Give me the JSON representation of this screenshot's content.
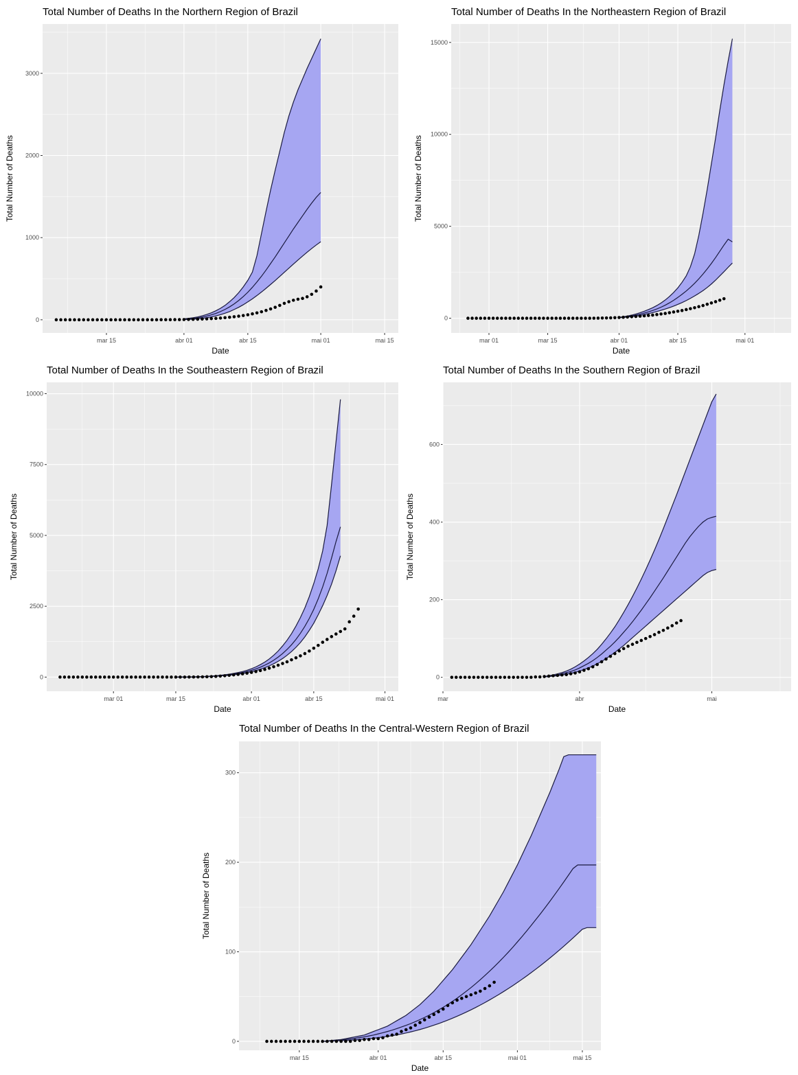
{
  "colors": {
    "panel": "#ebebeb",
    "grid": "#ffffff",
    "band": "#a6a6f2",
    "line": "#1a1a40",
    "point": "#000000"
  },
  "chart_data": [
    {
      "id": "north",
      "type": "line",
      "title": "Total Number of Deaths In the Northern Region of Brazil",
      "xlabel": "Date",
      "ylabel": "Total Number of Deaths",
      "x_unit": "date",
      "xlim": [
        "2020-03-01",
        "2020-05-18"
      ],
      "ylim": [
        -160,
        3600
      ],
      "y_ticks": [
        0,
        1000,
        2000,
        3000
      ],
      "x_ticks": [
        {
          "date": "2020-03-15",
          "label": "mar 15"
        },
        {
          "date": "2020-04-01",
          "label": "abr 01"
        },
        {
          "date": "2020-04-15",
          "label": "abr 15"
        },
        {
          "date": "2020-05-01",
          "label": "mai 01"
        },
        {
          "date": "2020-05-15",
          "label": "mai 15"
        }
      ],
      "band": {
        "name": "prediction interval",
        "start": "2020-04-01",
        "upper": [
          12,
          18,
          25,
          35,
          48,
          65,
          85,
          110,
          140,
          175,
          220,
          270,
          330,
          400,
          480,
          580,
          780,
          1050,
          1320,
          1580,
          1820,
          2050,
          2280,
          2480,
          2650,
          2800,
          2930,
          3060,
          3180,
          3300,
          3420
        ],
        "lower": [
          3,
          5,
          8,
          12,
          18,
          25,
          35,
          47,
          62,
          80,
          100,
          125,
          152,
          183,
          218,
          255,
          295,
          338,
          383,
          430,
          478,
          528,
          578,
          628,
          678,
          727,
          775,
          822,
          867,
          910,
          950
        ]
      },
      "median": [
        8,
        12,
        17,
        24,
        33,
        45,
        60,
        78,
        100,
        126,
        157,
        193,
        235,
        282,
        335,
        395,
        460,
        530,
        605,
        685,
        765,
        850,
        935,
        1020,
        1105,
        1185,
        1265,
        1345,
        1420,
        1490,
        1550
      ],
      "points": {
        "start": "2020-03-04",
        "values": [
          0,
          0,
          0,
          0,
          0,
          0,
          0,
          0,
          0,
          0,
          0,
          0,
          0,
          0,
          0,
          0,
          0,
          0,
          0,
          0,
          0,
          0,
          0,
          1,
          1,
          1,
          2,
          2,
          3,
          4,
          5,
          7,
          9,
          11,
          14,
          17,
          21,
          26,
          31,
          37,
          44,
          52,
          61,
          72,
          84,
          98,
          114,
          132,
          152,
          175,
          200,
          220,
          238,
          250,
          260,
          280,
          310,
          350,
          400
        ]
      }
    },
    {
      "id": "northeast",
      "type": "line",
      "title": "Total Number of Deaths In the Northeastern Region of Brazil",
      "xlabel": "Date",
      "ylabel": "Total Number of Deaths",
      "x_unit": "date",
      "xlim": [
        "2020-02-21",
        "2020-05-12"
      ],
      "ylim": [
        -800,
        16000
      ],
      "y_ticks": [
        0,
        5000,
        10000,
        15000
      ],
      "x_ticks": [
        {
          "date": "2020-03-01",
          "label": "mar 01"
        },
        {
          "date": "2020-03-15",
          "label": "mar 15"
        },
        {
          "date": "2020-04-01",
          "label": "abr 01"
        },
        {
          "date": "2020-04-15",
          "label": "abr 15"
        },
        {
          "date": "2020-05-01",
          "label": "mai 01"
        }
      ],
      "band": {
        "name": "prediction interval",
        "start": "2020-04-01",
        "upper": [
          50,
          80,
          120,
          170,
          230,
          300,
          380,
          470,
          570,
          690,
          830,
          990,
          1180,
          1400,
          1650,
          1950,
          2300,
          2800,
          3500,
          4500,
          5700,
          7000,
          8400,
          9800,
          11300,
          12700,
          14000,
          15200
        ],
        "lower": [
          30,
          45,
          65,
          90,
          120,
          155,
          200,
          250,
          305,
          365,
          430,
          500,
          575,
          660,
          750,
          850,
          960,
          1080,
          1210,
          1350,
          1500,
          1670,
          1860,
          2070,
          2300,
          2530,
          2770,
          3000
        ],
        "upper_note": "steep segment after late April"
      },
      "median": [
        40,
        60,
        90,
        125,
        170,
        220,
        280,
        345,
        420,
        505,
        600,
        710,
        835,
        975,
        1130,
        1300,
        1480,
        1680,
        1900,
        2140,
        2400,
        2680,
        2980,
        3300,
        3640,
        3980,
        4300,
        4150
      ],
      "points": {
        "start": "2020-02-25",
        "values": [
          0,
          0,
          0,
          0,
          0,
          0,
          0,
          0,
          0,
          0,
          0,
          0,
          0,
          0,
          0,
          0,
          0,
          0,
          0,
          0,
          0,
          0,
          0,
          0,
          0,
          0,
          0,
          0,
          0,
          0,
          2,
          5,
          10,
          15,
          20,
          30,
          40,
          50,
          65,
          80,
          95,
          110,
          130,
          150,
          170,
          200,
          230,
          260,
          300,
          340,
          380,
          420,
          470,
          520,
          570,
          630,
          690,
          760,
          830,
          900,
          980,
          1060
        ]
      }
    },
    {
      "id": "southeast",
      "type": "line",
      "title": "Total Number of Deaths In the Southeastern Region of Brazil",
      "xlabel": "Date",
      "ylabel": "Total Number of Deaths",
      "x_unit": "date",
      "xlim": [
        "2020-02-15",
        "2020-05-04"
      ],
      "ylim": [
        -500,
        10400
      ],
      "y_ticks": [
        0,
        2500,
        5000,
        7500,
        10000
      ],
      "x_ticks": [
        {
          "date": "2020-03-01",
          "label": "mar 01"
        },
        {
          "date": "2020-03-15",
          "label": "mar 15"
        },
        {
          "date": "2020-04-01",
          "label": "abr 01"
        },
        {
          "date": "2020-04-15",
          "label": "abr 15"
        },
        {
          "date": "2020-05-01",
          "label": "mai 01"
        }
      ],
      "band": {
        "name": "prediction interval",
        "start": "2020-03-15",
        "upper": [
          1,
          2,
          3,
          5,
          8,
          12,
          18,
          26,
          36,
          48,
          64,
          82,
          104,
          130,
          160,
          195,
          240,
          295,
          360,
          440,
          530,
          640,
          770,
          920,
          1100,
          1300,
          1530,
          1800,
          2100,
          2440,
          2840,
          3300,
          3820,
          4450,
          5350,
          6800,
          8300,
          9800
        ],
        "lower": [
          0,
          1,
          2,
          3,
          5,
          8,
          12,
          17,
          23,
          31,
          40,
          52,
          66,
          83,
          103,
          127,
          156,
          190,
          230,
          277,
          332,
          396,
          470,
          556,
          655,
          770,
          900,
          1050,
          1220,
          1420,
          1650,
          1900,
          2200,
          2520,
          2880,
          3280,
          3750,
          4280
        ],
        "median": [
          1,
          1,
          2,
          4,
          6,
          10,
          15,
          21,
          29,
          39,
          52,
          66,
          84,
          106,
          132,
          162,
          197,
          240,
          290,
          350,
          420,
          500,
          595,
          705,
          830,
          975,
          1140,
          1330,
          1545,
          1790,
          2070,
          2390,
          2760,
          3180,
          3660,
          4200,
          4780,
          5300
        ]
      },
      "points": {
        "start": "2020-02-18",
        "values": [
          0,
          0,
          0,
          0,
          0,
          0,
          0,
          0,
          0,
          0,
          0,
          0,
          0,
          0,
          0,
          0,
          0,
          0,
          0,
          0,
          0,
          0,
          0,
          0,
          0,
          0,
          0,
          0,
          1,
          2,
          3,
          5,
          8,
          12,
          17,
          25,
          35,
          48,
          62,
          78,
          95,
          115,
          138,
          165,
          195,
          230,
          270,
          315,
          365,
          420,
          480,
          540,
          610,
          680,
          750,
          830,
          920,
          1020,
          1120,
          1230,
          1330,
          1430,
          1520,
          1610,
          1700,
          1950,
          2150,
          2400
        ]
      }
    },
    {
      "id": "south",
      "type": "line",
      "title": "Total Number of Deaths In the Southern Region of Brazil",
      "xlabel": "Date",
      "ylabel": "Total Number of Deaths",
      "x_unit": "date",
      "xlim": [
        "2020-03-01",
        "2020-05-19"
      ],
      "ylim": [
        -36,
        760
      ],
      "y_ticks": [
        0,
        200,
        400,
        600
      ],
      "x_ticks": [
        {
          "date": "2020-03-01",
          "label": "mar"
        },
        {
          "date": "2020-04-01",
          "label": "abr"
        },
        {
          "date": "2020-05-01",
          "label": "mai"
        }
      ],
      "band": {
        "name": "prediction interval",
        "start": "2020-03-24",
        "upper": [
          2,
          4,
          6,
          9,
          12,
          16,
          21,
          27,
          34,
          42,
          51,
          61,
          72,
          85,
          99,
          114,
          130,
          148,
          167,
          187,
          208,
          230,
          253,
          277,
          302,
          328,
          355,
          383,
          412,
          441,
          470,
          500,
          530,
          560,
          590,
          620,
          650,
          680,
          710,
          730
        ],
        "lower": [
          1,
          2,
          3,
          4,
          6,
          8,
          10,
          13,
          16,
          20,
          24,
          29,
          35,
          41,
          48,
          56,
          64,
          73,
          82,
          92,
          102,
          112,
          122,
          132,
          142,
          152,
          162,
          172,
          182,
          192,
          202,
          212,
          222,
          232,
          242,
          252,
          262,
          270,
          275,
          278
        ],
        "median": [
          1,
          3,
          4,
          6,
          9,
          12,
          15,
          19,
          24,
          30,
          36,
          43,
          51,
          60,
          70,
          80,
          91,
          103,
          116,
          129,
          143,
          158,
          173,
          189,
          205,
          222,
          239,
          256,
          274,
          292,
          310,
          328,
          346,
          362,
          376,
          389,
          400,
          408,
          412,
          415
        ]
      },
      "points": {
        "start": "2020-03-03",
        "values": [
          0,
          0,
          0,
          0,
          0,
          0,
          0,
          0,
          0,
          0,
          0,
          0,
          0,
          0,
          0,
          0,
          0,
          0,
          0,
          1,
          1,
          2,
          3,
          4,
          5,
          6,
          7,
          9,
          11,
          14,
          18,
          22,
          27,
          33,
          40,
          47,
          54,
          61,
          68,
          74,
          80,
          85,
          90,
          95,
          100,
          105,
          110,
          116,
          121,
          127,
          133,
          140,
          146
        ]
      }
    },
    {
      "id": "centralwest",
      "type": "line",
      "title": "Total Number of Deaths In the Central-Western Region of Brazil",
      "xlabel": "Date",
      "ylabel": "Total Number of Deaths",
      "x_unit": "date",
      "xlim": [
        "2020-03-02",
        "2020-05-19"
      ],
      "ylim": [
        -10,
        335
      ],
      "y_ticks": [
        0,
        100,
        200,
        300
      ],
      "x_ticks": [
        {
          "date": "2020-03-15",
          "label": "mar 15"
        },
        {
          "date": "2020-04-01",
          "label": "abr 01"
        },
        {
          "date": "2020-04-15",
          "label": "abr 15"
        },
        {
          "date": "2020-05-01",
          "label": "mai 01"
        },
        {
          "date": "2020-05-15",
          "label": "mai 15"
        }
      ],
      "band": {
        "name": "prediction interval",
        "start": "2020-03-20",
        "upper": [
          0,
          0.5,
          1,
          1.5,
          2,
          3,
          4,
          5,
          6,
          7,
          9,
          11,
          13,
          15,
          17,
          20,
          23,
          26,
          29,
          33,
          37,
          41,
          46,
          51,
          56,
          62,
          68,
          74,
          80,
          87,
          94,
          101,
          108,
          116,
          124,
          132,
          140,
          149,
          158,
          167,
          177,
          187,
          197,
          208,
          219,
          230,
          242,
          254,
          266,
          278,
          291,
          304,
          318,
          320,
          320,
          320,
          320,
          320,
          320,
          320
        ],
        "lower": [
          0,
          0.2,
          0.4,
          0.6,
          0.8,
          1,
          1.3,
          1.6,
          2,
          2.5,
          3,
          3.5,
          4.1,
          4.8,
          5.5,
          6.3,
          7.2,
          8.2,
          9.3,
          10.5,
          11.8,
          13.2,
          14.7,
          16.3,
          18,
          19.8,
          21.7,
          23.7,
          25.8,
          28,
          30.3,
          32.7,
          35.2,
          37.8,
          40.5,
          43.3,
          46.2,
          49.2,
          52.3,
          55.5,
          58.8,
          62.2,
          65.7,
          69.3,
          73,
          76.8,
          80.7,
          84.7,
          88.8,
          93,
          97.3,
          101.7,
          106.2,
          110.8,
          115.5,
          120.3,
          125.2,
          127,
          127,
          127
        ],
        "median": [
          0,
          0.3,
          0.7,
          1,
          1.4,
          2,
          2.7,
          3.4,
          4.2,
          5,
          6,
          7,
          8.3,
          9.6,
          11,
          12.5,
          14.2,
          16,
          17.8,
          19.8,
          22,
          24.3,
          26.7,
          29.3,
          32,
          35,
          38,
          41.2,
          44.6,
          48.2,
          52,
          56,
          60,
          64.3,
          68.8,
          73.5,
          78.3,
          83.3,
          88.5,
          93.8,
          99.3,
          105,
          111,
          117,
          123.2,
          129.6,
          136.1,
          142.7,
          149.5,
          156.4,
          163.5,
          170.7,
          178,
          185.5,
          193,
          197,
          197,
          197,
          197,
          197
        ]
      },
      "points": {
        "start": "2020-03-08",
        "values": [
          0,
          0,
          0,
          0,
          0,
          0,
          0,
          0,
          0,
          0,
          0,
          0,
          0,
          0,
          0,
          0,
          0,
          0,
          0,
          1,
          1,
          2,
          2,
          3,
          3,
          4,
          6,
          7,
          8,
          11,
          13,
          15,
          18,
          21,
          24,
          27,
          30,
          33,
          36,
          40,
          43,
          46,
          48,
          50,
          52,
          54,
          56,
          59,
          62,
          66
        ]
      }
    }
  ]
}
